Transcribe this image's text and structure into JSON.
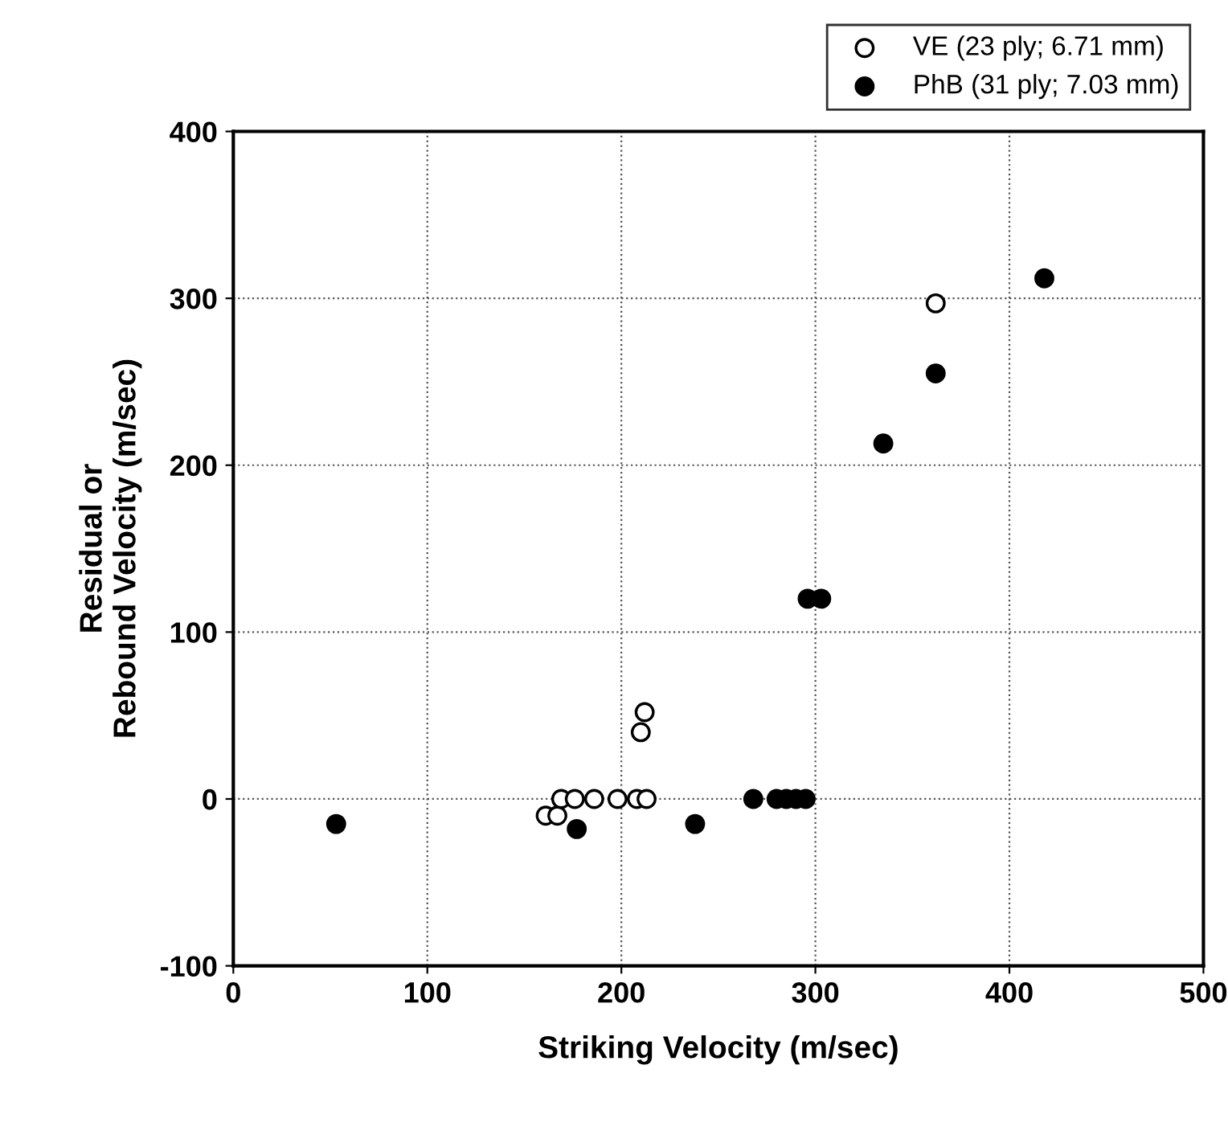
{
  "chart_data": {
    "type": "scatter",
    "xlabel": "Striking Velocity (m/sec)",
    "ylabel": "Residual or\nRebound Velocity (m/sec)",
    "xlim": [
      0,
      500
    ],
    "xticks": [
      0,
      100,
      200,
      300,
      400,
      500
    ],
    "ylim": [
      -100,
      400
    ],
    "yticks": [
      -100,
      0,
      100,
      200,
      300,
      400
    ],
    "grid": true,
    "legend": "top right",
    "marker": "circle",
    "series": [
      {
        "name": "VE (23 ply; 6.71 mm)",
        "color": "#ffffff",
        "x": [
          161,
          167,
          169,
          176,
          186,
          198,
          208,
          213,
          210,
          212,
          362
        ],
        "values": [
          -10,
          -10,
          0,
          0,
          0,
          0,
          0,
          0,
          40,
          52,
          297
        ]
      },
      {
        "name": "PhB (31 ply; 7.03 mm)",
        "color": "#000000",
        "x": [
          53,
          177,
          238,
          268,
          280,
          285,
          290,
          295,
          296,
          303,
          335,
          362,
          418
        ],
        "values": [
          -15,
          -18,
          -15,
          0,
          0,
          0,
          0,
          0,
          120,
          120,
          213,
          255,
          312
        ]
      }
    ]
  }
}
